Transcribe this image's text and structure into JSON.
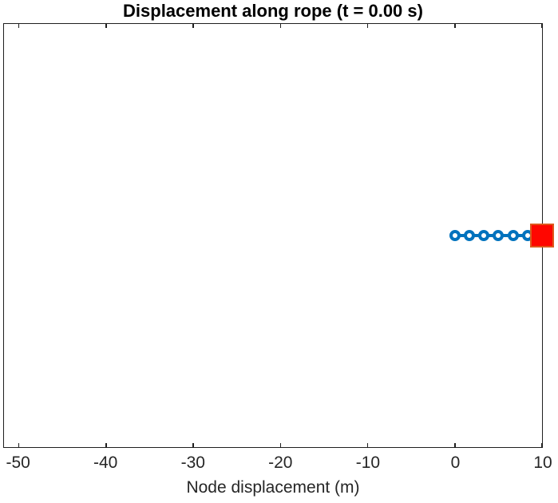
{
  "figure": {
    "title": "Displacement along rope (t = 0.00 s)",
    "time_label_seconds": "0.00"
  },
  "chart_data": {
    "type": "scatter",
    "title": "Displacement along rope (t = 0.00 s)",
    "xlabel": "Node displacement (m)",
    "ylabel": "",
    "xlim": [
      -51.7,
      10
    ],
    "xticks": [
      -50,
      -40,
      -30,
      -20,
      -10,
      0,
      10
    ],
    "yticks": [],
    "grid": false,
    "legend": false,
    "series": [
      {
        "name": "rope-nodes",
        "marker": "circle-open",
        "line": true,
        "color": "#0072BD",
        "x": [
          0,
          1.6667,
          3.3333,
          5,
          6.6667,
          8.3333,
          10
        ],
        "y": [
          0,
          0,
          0,
          0,
          0,
          0,
          0
        ]
      },
      {
        "name": "end-mass",
        "marker": "square-filled",
        "line": false,
        "fill": "#ff0600",
        "edge": "#de571c",
        "x": [
          10
        ],
        "y": [
          0
        ]
      }
    ],
    "colors": {
      "axis": "#1f1f1f",
      "tick_text": "#262626",
      "title_text": "#000000"
    }
  }
}
